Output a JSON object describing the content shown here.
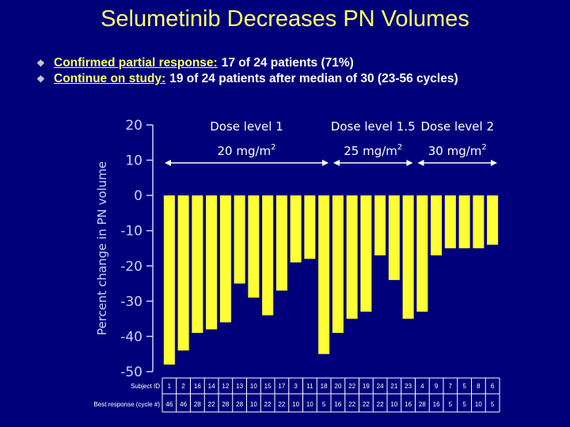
{
  "slide": {
    "title": "Selumetinib Decreases PN Volumes",
    "bullets": [
      {
        "label": "Confirmed partial response:",
        "text": "17 of 24 patients (71%)"
      },
      {
        "label": "Continue on study:",
        "text": "19 of 24 patients after median of 30 (23-56 cycles)"
      }
    ],
    "bullet_icon": "diamond-bullet-icon"
  },
  "colors": {
    "background": "#00007a",
    "title": "#ffff66",
    "bar": "#ffff33",
    "axis_text": "#d0d0ff",
    "annotation": "#ffffff"
  },
  "chart_data": {
    "type": "bar",
    "ylabel": "Percent change in PN volume",
    "ylim": [
      -50,
      20
    ],
    "yticks": [
      20,
      10,
      0,
      -10,
      -20,
      -30,
      -40,
      -50
    ],
    "grid": false,
    "values": [
      -48,
      -44,
      -39,
      -38,
      -36,
      -25,
      -29,
      -34,
      -27,
      -19,
      -18,
      -45,
      -39,
      -35,
      -33,
      -17,
      -24,
      -35,
      -33,
      -17,
      -15,
      -15,
      -15,
      -14
    ],
    "dose_groups": [
      {
        "label": "Dose level 1",
        "dose": "20 mg/m",
        "sup": "2",
        "start": 0,
        "end": 11
      },
      {
        "label": "Dose level 1.5",
        "dose": "25 mg/m",
        "sup": "2",
        "start": 12,
        "end": 17
      },
      {
        "label": "Dose level 2",
        "dose": "30 mg/m",
        "sup": "2",
        "start": 18,
        "end": 23
      }
    ],
    "table": {
      "row1_label": "Subject ID",
      "row1": [
        "1",
        "2",
        "16",
        "14",
        "12",
        "13",
        "10",
        "15",
        "17",
        "3",
        "11",
        "18",
        "20",
        "22",
        "19",
        "24",
        "21",
        "23",
        "4",
        "9",
        "7",
        "5",
        "8",
        "6"
      ],
      "row2_label": "Best response (cycle #)",
      "row2": [
        "46",
        "46",
        "28",
        "22",
        "28",
        "28",
        "10",
        "22",
        "22",
        "10",
        "10",
        "5",
        "16",
        "22",
        "22",
        "22",
        "10",
        "16",
        "28",
        "16",
        "5",
        "5",
        "10",
        "5"
      ]
    }
  }
}
